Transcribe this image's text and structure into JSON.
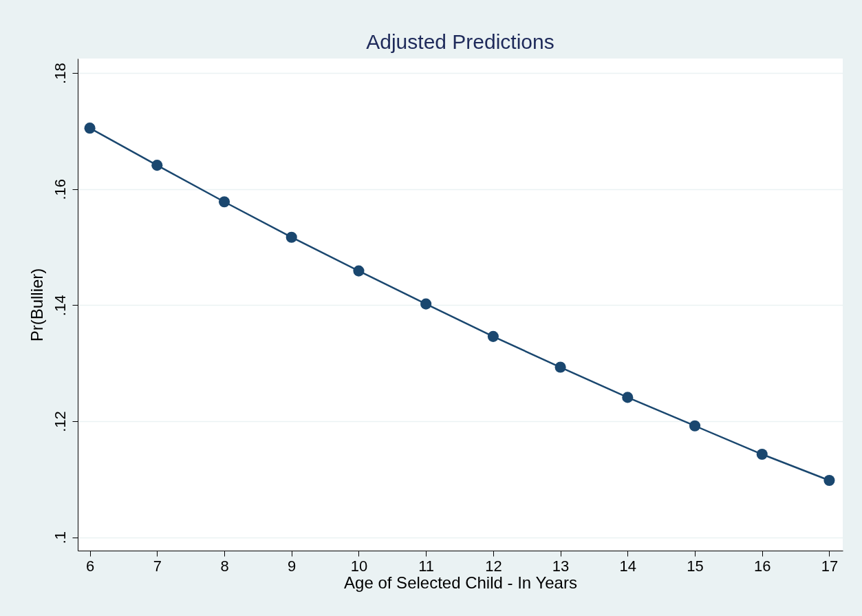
{
  "chart_data": {
    "type": "line",
    "title": "Adjusted Predictions",
    "xlabel": "Age of Selected Child - In Years",
    "ylabel": "Pr(Bullier)",
    "x": [
      6,
      7,
      8,
      9,
      10,
      11,
      12,
      13,
      14,
      15,
      16,
      17
    ],
    "series": [
      {
        "color": "#1a476f",
        "values": [
          0.1705,
          0.1641,
          0.1578,
          0.1517,
          0.1459,
          0.1402,
          0.1346,
          0.1293,
          0.1241,
          0.1192,
          0.1143,
          0.1098
        ]
      }
    ],
    "xlim": [
      5.82,
      17.2
    ],
    "xticks": [
      6,
      7,
      8,
      9,
      10,
      11,
      12,
      13,
      14,
      15,
      16,
      17
    ],
    "ylim": [
      0.0977,
      0.1825
    ],
    "yticks": [
      {
        "value": 0.1,
        "label": ".1"
      },
      {
        "value": 0.12,
        "label": ".12"
      },
      {
        "value": 0.14,
        "label": ".14"
      },
      {
        "value": 0.16,
        "label": ".16"
      },
      {
        "value": 0.18,
        "label": ".18"
      }
    ],
    "grid": "y",
    "marker": "circle",
    "line_style": "solid"
  }
}
